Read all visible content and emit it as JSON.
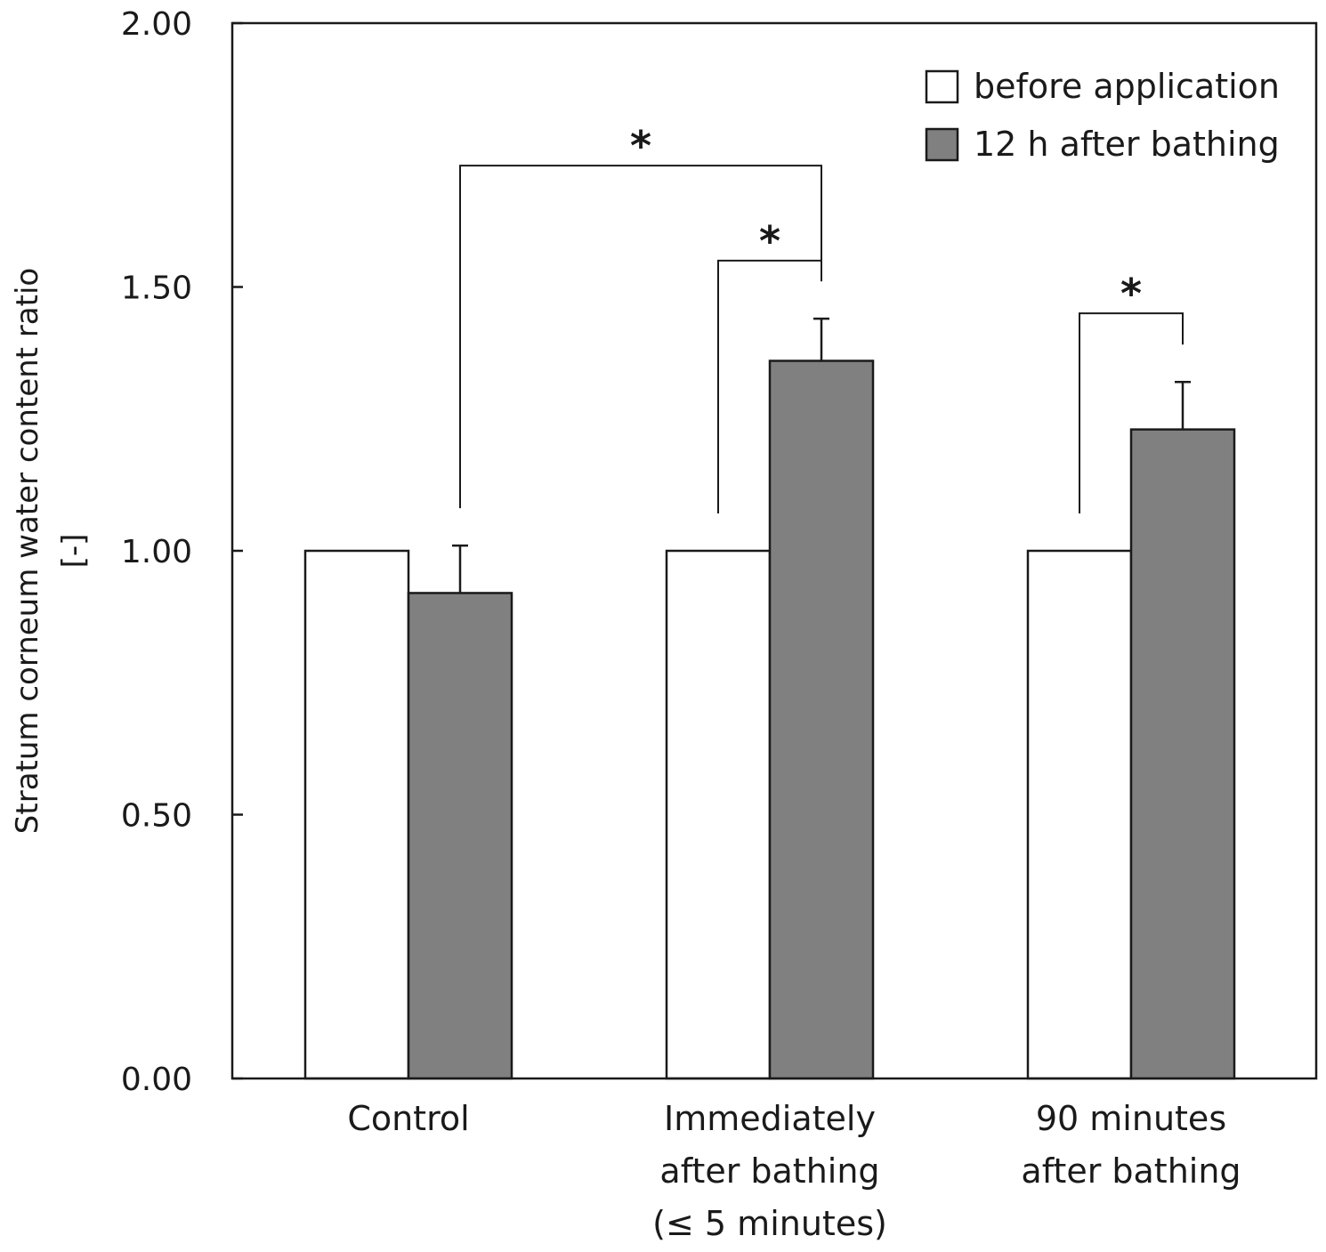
{
  "chart_data": {
    "type": "bar",
    "title": "",
    "ylabel": [
      "Stratum corneum water content ratio",
      "[-]"
    ],
    "xlabel": "",
    "ylim": [
      0,
      2
    ],
    "yticks": [
      "0.00",
      "0.50",
      "1.00",
      "1.50",
      "2.00"
    ],
    "categories": [
      [
        "Control"
      ],
      [
        "Immediately",
        "after bathing",
        "(≤ 5 minutes)"
      ],
      [
        "90 minutes",
        "after bathing"
      ]
    ],
    "series": [
      {
        "name": "before application",
        "color": "#ffffff",
        "values": [
          1.0,
          1.0,
          1.0
        ],
        "errors": [
          0,
          0,
          0
        ]
      },
      {
        "name": "12 h after bathing",
        "color": "#808080",
        "values": [
          0.92,
          1.36,
          1.23
        ],
        "errors": [
          0.09,
          0.08,
          0.09
        ]
      }
    ],
    "legend_position": "top-right",
    "grid": false,
    "significance": [
      {
        "from": [
          0,
          1
        ],
        "to": [
          1,
          1
        ],
        "label": "*"
      },
      {
        "from": [
          1,
          0
        ],
        "to": [
          1,
          1
        ],
        "label": "*"
      },
      {
        "from": [
          2,
          0
        ],
        "to": [
          2,
          1
        ],
        "label": "*"
      }
    ]
  }
}
